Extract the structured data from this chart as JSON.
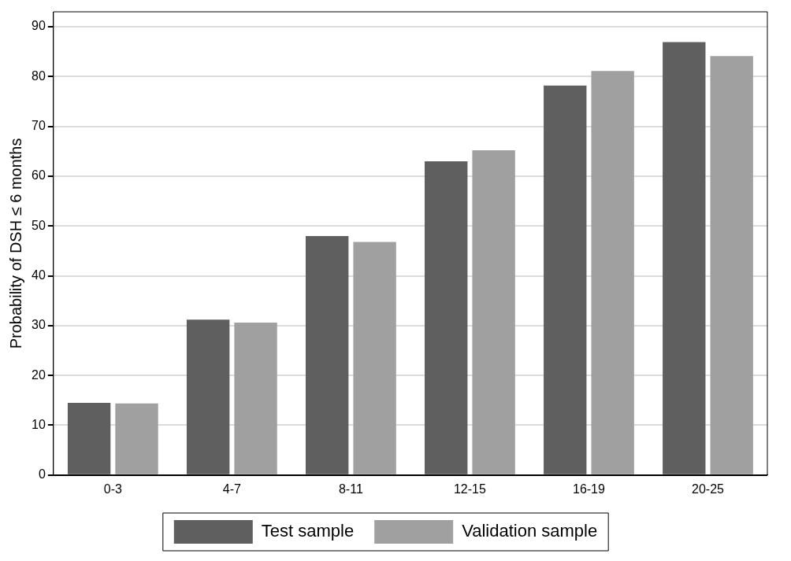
{
  "chart_data": {
    "type": "bar",
    "ylabel": "Probability of DSH ≤ 6 months",
    "categories": [
      "0-3",
      "4-7",
      "8-11",
      "12-15",
      "16-19",
      "20-25"
    ],
    "series": [
      {
        "name": "Test sample",
        "color": "#5f5f5f",
        "values": [
          14.5,
          31.2,
          48.0,
          63.0,
          78.2,
          86.9
        ]
      },
      {
        "name": "Validation sample",
        "color": "#a0a0a0",
        "values": [
          14.4,
          30.6,
          46.8,
          65.2,
          81.1,
          84.1
        ]
      }
    ],
    "ylim": [
      0,
      93
    ],
    "yticks": [
      0,
      10,
      20,
      30,
      40,
      50,
      60,
      70,
      80,
      90
    ],
    "grid": "y",
    "legend": "bottom"
  }
}
